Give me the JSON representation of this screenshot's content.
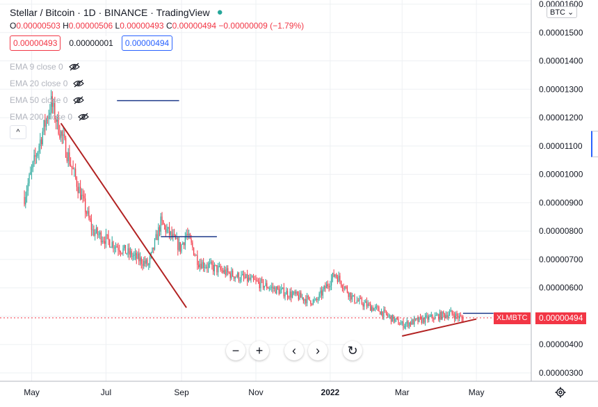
{
  "header": {
    "title": "Stellar / Bitcoin · 1D · BINANCE · TradingView",
    "ohlc": {
      "o_label": "O",
      "o_value": "0.00000503",
      "h_label": "H",
      "h_value": "0.00000506",
      "l_label": "L",
      "l_value": "0.00000493",
      "c_label": "C",
      "c_value": "0.00000494",
      "change": "−0.00000009 (−1.79%)"
    },
    "bid": "0.00000493",
    "spread": "0.00000001",
    "ask": "0.00000494"
  },
  "legend": [
    {
      "label": "EMA 9 close 0"
    },
    {
      "label": "EMA 20 close 0"
    },
    {
      "label": "EMA 50 close 0"
    },
    {
      "label": "EMA 200 close 0"
    }
  ],
  "currency_button": "BTC",
  "last_price": {
    "symbol": "XLMBTC",
    "value": "0.00000494"
  },
  "zoom": {
    "minus": "−",
    "plus": "+",
    "left": "‹",
    "right": "›",
    "reset": "↻"
  },
  "icons": {
    "visibility": "eye-off-icon",
    "settings": "gear-icon",
    "reset": "reset-icon"
  },
  "colors": {
    "up": "#26a69a",
    "down": "#f23645",
    "trendline": "#b22222",
    "hline": "#1e3a8a",
    "grid": "#eef0f3"
  },
  "chart_data": {
    "type": "candlestick",
    "title": "Stellar / Bitcoin · 1D · BINANCE · TradingView",
    "xlabel": "",
    "ylabel": "",
    "x_ticks": [
      "May",
      "Jul",
      "Sep",
      "Nov",
      "2022",
      "Mar",
      "May"
    ],
    "y_ticks": [
      "0.00000300",
      "0.00000400",
      "0.00000500",
      "0.00000600",
      "0.00000700",
      "0.00000800",
      "0.00000900",
      "0.00001000",
      "0.00001100",
      "0.00001200",
      "0.00001300",
      "0.00001400",
      "0.00001500",
      "0.00001600"
    ],
    "ylim": [
      2.7e-06,
      1.6e-05
    ],
    "grid": true,
    "price_path": [
      {
        "date": "2021-04-25",
        "price": 9.2e-06
      },
      {
        "date": "2021-05-10",
        "price": 1.15e-05
      },
      {
        "date": "2021-05-17",
        "price": 1.25e-05
      },
      {
        "date": "2021-06-01",
        "price": 1.05e-05
      },
      {
        "date": "2021-06-20",
        "price": 8e-06
      },
      {
        "date": "2021-07-20",
        "price": 7.2e-06
      },
      {
        "date": "2021-08-05",
        "price": 6.8e-06
      },
      {
        "date": "2021-08-15",
        "price": 8.3e-06
      },
      {
        "date": "2021-08-31",
        "price": 7.4e-06
      },
      {
        "date": "2021-09-05",
        "price": 7.9e-06
      },
      {
        "date": "2021-09-15",
        "price": 6.9e-06
      },
      {
        "date": "2021-10-10",
        "price": 6.5e-06
      },
      {
        "date": "2021-11-01",
        "price": 6.2e-06
      },
      {
        "date": "2021-11-20",
        "price": 5.9e-06
      },
      {
        "date": "2021-12-20",
        "price": 5.5e-06
      },
      {
        "date": "2022-01-05",
        "price": 6.5e-06
      },
      {
        "date": "2022-01-20",
        "price": 5.6e-06
      },
      {
        "date": "2022-02-10",
        "price": 5.2e-06
      },
      {
        "date": "2022-03-01",
        "price": 4.7e-06
      },
      {
        "date": "2022-03-20",
        "price": 4.9e-06
      },
      {
        "date": "2022-04-10",
        "price": 5.1e-06
      },
      {
        "date": "2022-04-20",
        "price": 4.9e-06
      }
    ],
    "trendlines": [
      {
        "start": {
          "date": "2021-05-25",
          "price": 1.18e-05
        },
        "end": {
          "date": "2021-09-05",
          "price": 5.3e-06
        },
        "color": "#b22222"
      },
      {
        "start": {
          "date": "2022-03-01",
          "price": 4.3e-06
        },
        "end": {
          "date": "2022-05-01",
          "price": 4.9e-06
        },
        "color": "#b22222"
      }
    ],
    "horizontal_lines": [
      {
        "start": "2021-07-10",
        "end": "2021-08-30",
        "price": 1.26e-05
      },
      {
        "start": "2021-08-15",
        "end": "2021-09-30",
        "price": 7.8e-06
      },
      {
        "start": "2022-04-20",
        "end": "2022-05-15",
        "price": 5.1e-06
      }
    ],
    "last_price": 4.94e-06
  }
}
